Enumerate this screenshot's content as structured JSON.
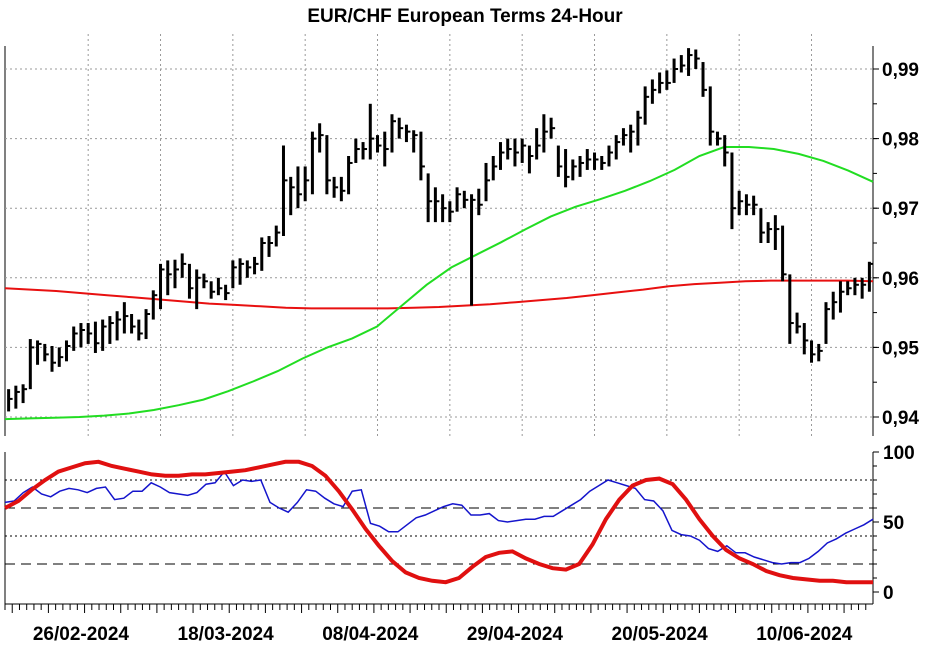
{
  "chart_data": [
    {
      "type": "ohlc",
      "title": "EUR/CHF European Terms 24-Hour",
      "ylim": [
        0.94,
        0.993
      ],
      "y_ticks": [
        0.94,
        0.95,
        0.96,
        0.97,
        0.98,
        0.99
      ],
      "y_tick_labels": [
        "0,94",
        "0,95",
        "0,96",
        "0,97",
        "0,98",
        "0,99"
      ],
      "x_tick_labels": [
        "26/02-2024",
        "18/03-2024",
        "08/04-2024",
        "29/04-2024",
        "20/05-2024",
        "10/06-2024"
      ],
      "grid": true,
      "colors": {
        "bars": "#000000",
        "ma_long": "#e81010",
        "ma_short": "#22dd22"
      },
      "series": [
        {
          "kind": "bars",
          "values": [
            [
              0.944,
              0.9408,
              0.9426
            ],
            [
              0.9445,
              0.9412,
              0.9436
            ],
            [
              0.9447,
              0.942,
              0.944
            ],
            [
              0.9512,
              0.944,
              0.95
            ],
            [
              0.951,
              0.9475,
              0.9505
            ],
            [
              0.9505,
              0.948,
              0.949
            ],
            [
              0.9502,
              0.9465,
              0.9478
            ],
            [
              0.95,
              0.9472,
              0.9486
            ],
            [
              0.951,
              0.948,
              0.9502
            ],
            [
              0.953,
              0.9495,
              0.952
            ],
            [
              0.9535,
              0.95,
              0.9525
            ],
            [
              0.9535,
              0.9505,
              0.952
            ],
            [
              0.9537,
              0.9492,
              0.9506
            ],
            [
              0.954,
              0.9495,
              0.953
            ],
            [
              0.9545,
              0.9505,
              0.9535
            ],
            [
              0.9552,
              0.951,
              0.954
            ],
            [
              0.9565,
              0.952,
              0.9545
            ],
            [
              0.9548,
              0.952,
              0.953
            ],
            [
              0.954,
              0.951,
              0.952
            ],
            [
              0.9555,
              0.9512,
              0.9548
            ],
            [
              0.9582,
              0.954,
              0.9575
            ],
            [
              0.962,
              0.9555,
              0.9612
            ],
            [
              0.9625,
              0.9575,
              0.9605
            ],
            [
              0.9626,
              0.9585,
              0.9612
            ],
            [
              0.9635,
              0.96,
              0.962
            ],
            [
              0.962,
              0.957,
              0.9585
            ],
            [
              0.9612,
              0.9555,
              0.96
            ],
            [
              0.9606,
              0.9585,
              0.9595
            ],
            [
              0.9595,
              0.957,
              0.958
            ],
            [
              0.96,
              0.9575,
              0.9585
            ],
            [
              0.959,
              0.9568,
              0.9578
            ],
            [
              0.9625,
              0.9585,
              0.9615
            ],
            [
              0.9628,
              0.959,
              0.962
            ],
            [
              0.9625,
              0.96,
              0.9615
            ],
            [
              0.963,
              0.9605,
              0.962
            ],
            [
              0.9658,
              0.961,
              0.965
            ],
            [
              0.966,
              0.963,
              0.965
            ],
            [
              0.9675,
              0.9645,
              0.9665
            ],
            [
              0.979,
              0.966,
              0.974
            ],
            [
              0.9745,
              0.969,
              0.973
            ],
            [
              0.976,
              0.97,
              0.972
            ],
            [
              0.976,
              0.971,
              0.974
            ],
            [
              0.981,
              0.972,
              0.98
            ],
            [
              0.9822,
              0.978,
              0.9805
            ],
            [
              0.9805,
              0.972,
              0.974
            ],
            [
              0.9745,
              0.9715,
              0.973
            ],
            [
              0.9745,
              0.971,
              0.9725
            ],
            [
              0.9775,
              0.972,
              0.9765
            ],
            [
              0.98,
              0.9765,
              0.9785
            ],
            [
              0.9795,
              0.977,
              0.9785
            ],
            [
              0.985,
              0.977,
              0.98
            ],
            [
              0.9805,
              0.978,
              0.979
            ],
            [
              0.981,
              0.976,
              0.9785
            ],
            [
              0.9835,
              0.978,
              0.9825
            ],
            [
              0.983,
              0.98,
              0.9815
            ],
            [
              0.982,
              0.9795,
              0.981
            ],
            [
              0.9812,
              0.978,
              0.9805
            ],
            [
              0.981,
              0.974,
              0.976
            ],
            [
              0.975,
              0.968,
              0.971
            ],
            [
              0.973,
              0.968,
              0.971
            ],
            [
              0.972,
              0.968,
              0.97
            ],
            [
              0.971,
              0.968,
              0.9695
            ],
            [
              0.973,
              0.9695,
              0.972
            ],
            [
              0.9725,
              0.97,
              0.9712
            ],
            [
              0.972,
              0.956,
              0.9712
            ],
            [
              0.9728,
              0.969,
              0.9705
            ],
            [
              0.9765,
              0.971,
              0.974
            ],
            [
              0.9775,
              0.974,
              0.976
            ],
            [
              0.9795,
              0.9755,
              0.978
            ],
            [
              0.98,
              0.977,
              0.9785
            ],
            [
              0.98,
              0.976,
              0.978
            ],
            [
              0.98,
              0.9765,
              0.979
            ],
            [
              0.979,
              0.975,
              0.9775
            ],
            [
              0.9815,
              0.977,
              0.979
            ],
            [
              0.9835,
              0.978,
              0.981
            ],
            [
              0.983,
              0.98,
              0.9815
            ],
            [
              0.979,
              0.9745,
              0.976
            ],
            [
              0.9785,
              0.973,
              0.9745
            ],
            [
              0.977,
              0.974,
              0.976
            ],
            [
              0.9775,
              0.9745,
              0.9765
            ],
            [
              0.9785,
              0.9755,
              0.977
            ],
            [
              0.978,
              0.9755,
              0.977
            ],
            [
              0.9775,
              0.9755,
              0.9765
            ],
            [
              0.979,
              0.976,
              0.978
            ],
            [
              0.9805,
              0.977,
              0.9795
            ],
            [
              0.9815,
              0.979,
              0.9805
            ],
            [
              0.982,
              0.978,
              0.981
            ],
            [
              0.984,
              0.979,
              0.983
            ],
            [
              0.9875,
              0.982,
              0.986
            ],
            [
              0.9885,
              0.985,
              0.987
            ],
            [
              0.9895,
              0.9865,
              0.988
            ],
            [
              0.9898,
              0.987,
              0.988
            ],
            [
              0.9915,
              0.988,
              0.99
            ],
            [
              0.992,
              0.9895,
              0.9905
            ],
            [
              0.993,
              0.989,
              0.992
            ],
            [
              0.9928,
              0.99,
              0.9915
            ],
            [
              0.991,
              0.986,
              0.987
            ],
            [
              0.9875,
              0.979,
              0.981
            ],
            [
              0.981,
              0.979,
              0.98
            ],
            [
              0.9805,
              0.976,
              0.978
            ],
            [
              0.978,
              0.967,
              0.97
            ],
            [
              0.9725,
              0.969,
              0.971
            ],
            [
              0.972,
              0.969,
              0.9705
            ],
            [
              0.9718,
              0.969,
              0.9705
            ],
            [
              0.97,
              0.965,
              0.9665
            ],
            [
              0.968,
              0.965,
              0.967
            ],
            [
              0.969,
              0.964,
              0.967
            ],
            [
              0.9675,
              0.9595,
              0.9605
            ],
            [
              0.9605,
              0.9505,
              0.9535
            ],
            [
              0.955,
              0.952,
              0.953
            ],
            [
              0.9535,
              0.949,
              0.951
            ],
            [
              0.951,
              0.9478,
              0.949
            ],
            [
              0.9505,
              0.948,
              0.9495
            ],
            [
              0.9565,
              0.9505,
              0.9555
            ],
            [
              0.958,
              0.954,
              0.9565
            ],
            [
              0.9595,
              0.955,
              0.958
            ],
            [
              0.9595,
              0.9575,
              0.9585
            ],
            [
              0.96,
              0.9575,
              0.959
            ],
            [
              0.96,
              0.957,
              0.959
            ],
            [
              0.9623,
              0.958,
              0.962
            ]
          ]
        },
        {
          "kind": "moving_average",
          "color": "red",
          "values": [
            0.9585,
            0.9583,
            0.9581,
            0.9578,
            0.9575,
            0.9572,
            0.9569,
            0.9566,
            0.9563,
            0.9561,
            0.9559,
            0.9557,
            0.9556,
            0.9556,
            0.9556,
            0.9556,
            0.9557,
            0.9558,
            0.956,
            0.9562,
            0.9565,
            0.9568,
            0.9571,
            0.9575,
            0.9579,
            0.9583,
            0.9588,
            0.9591,
            0.9593,
            0.9595,
            0.9596,
            0.9596,
            0.9596,
            0.9596,
            0.9595
          ]
        },
        {
          "kind": "moving_average",
          "color": "green",
          "values": [
            0.9397,
            0.9398,
            0.9399,
            0.94,
            0.9402,
            0.9405,
            0.941,
            0.9417,
            0.9425,
            0.9437,
            0.9451,
            0.9466,
            0.9484,
            0.95,
            0.9513,
            0.953,
            0.956,
            0.959,
            0.9615,
            0.9633,
            0.9651,
            0.967,
            0.9688,
            0.9702,
            0.9713,
            0.9725,
            0.9739,
            0.9755,
            0.9775,
            0.9788,
            0.9788,
            0.9785,
            0.9778,
            0.9768,
            0.9754,
            0.9738
          ]
        }
      ]
    },
    {
      "type": "line",
      "ylim": [
        0,
        100
      ],
      "y_ticks": [
        0,
        50,
        100
      ],
      "y_tick_labels": [
        "0",
        "50",
        "100"
      ],
      "reference_lines": {
        "dotted": [
          40,
          80
        ],
        "dashed": [
          20,
          60
        ]
      },
      "series": [
        {
          "kind": "oscillator_fast",
          "color": "blue",
          "values": [
            64,
            65,
            71,
            75,
            70,
            68,
            72,
            74,
            73,
            71,
            74,
            75,
            66,
            67,
            72,
            72,
            78,
            75,
            71,
            70,
            69,
            71,
            77,
            78,
            86,
            76,
            80,
            79,
            80,
            64,
            60,
            57,
            64,
            73,
            72,
            67,
            63,
            61,
            72,
            73,
            49,
            47,
            43,
            43,
            48,
            53,
            55,
            58,
            61,
            63,
            62,
            55,
            55,
            56,
            51,
            50,
            51,
            52,
            52,
            54,
            54,
            58,
            62,
            66,
            72,
            76,
            80,
            78,
            76,
            74,
            66,
            65,
            58,
            44,
            41,
            40,
            37,
            31,
            29,
            33,
            28,
            28,
            25,
            23,
            21,
            20,
            21,
            21,
            24,
            29,
            35,
            38,
            42,
            45,
            48,
            52
          ]
        },
        {
          "kind": "oscillator_slow",
          "color": "red",
          "values": [
            60,
            65,
            73,
            80,
            86,
            89,
            92,
            93,
            90,
            88,
            86,
            84,
            83,
            83,
            84,
            84,
            85,
            86,
            87,
            89,
            91,
            93,
            93,
            90,
            83,
            72,
            59,
            45,
            33,
            22,
            14,
            10,
            8,
            7,
            10,
            18,
            25,
            28,
            29,
            24,
            20,
            17,
            16,
            20,
            34,
            52,
            66,
            76,
            80,
            81,
            77,
            66,
            52,
            40,
            30,
            24,
            20,
            15,
            12,
            10,
            9,
            8,
            8,
            7,
            7,
            7
          ]
        }
      ]
    }
  ]
}
